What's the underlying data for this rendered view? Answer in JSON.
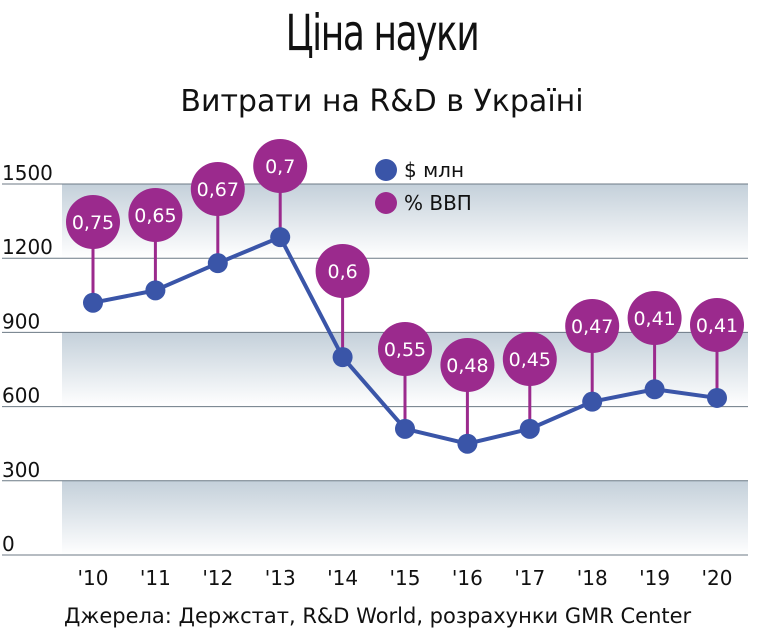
{
  "header": {
    "title": "Ціна науки",
    "subtitle": "Витрати на R&D в Україні"
  },
  "footer": {
    "source": "Джерела: Держстат, R&D World, розрахунки GMR Center"
  },
  "colors": {
    "line": "#3a55a8",
    "bubble": "#9b2a8d",
    "band": "#c4d0da",
    "grid": "#6c7a85"
  },
  "chart_data": {
    "type": "line",
    "categories": [
      "'10",
      "'11",
      "'12",
      "'13",
      "'14",
      "'15",
      "'16",
      "'17",
      "'18",
      "'19",
      "'20"
    ],
    "series": [
      {
        "name": "$ млн",
        "values": [
          1020,
          1070,
          1180,
          1285,
          800,
          510,
          450,
          510,
          620,
          670,
          635
        ]
      },
      {
        "name": "% ВВП",
        "values": [
          0.75,
          0.65,
          0.67,
          0.7,
          0.6,
          0.55,
          0.48,
          0.45,
          0.47,
          0.41,
          0.41
        ],
        "labels": [
          "0,75",
          "0,65",
          "0,67",
          "0,7",
          "0,6",
          "0,55",
          "0,48",
          "0,45",
          "0,47",
          "0,41",
          "0,41"
        ]
      }
    ],
    "y_ticks": [
      "0",
      "300",
      "600",
      "900",
      "1200",
      "1500"
    ],
    "ylim": [
      0,
      1500
    ],
    "grid": true,
    "legend_position": "top-center"
  }
}
